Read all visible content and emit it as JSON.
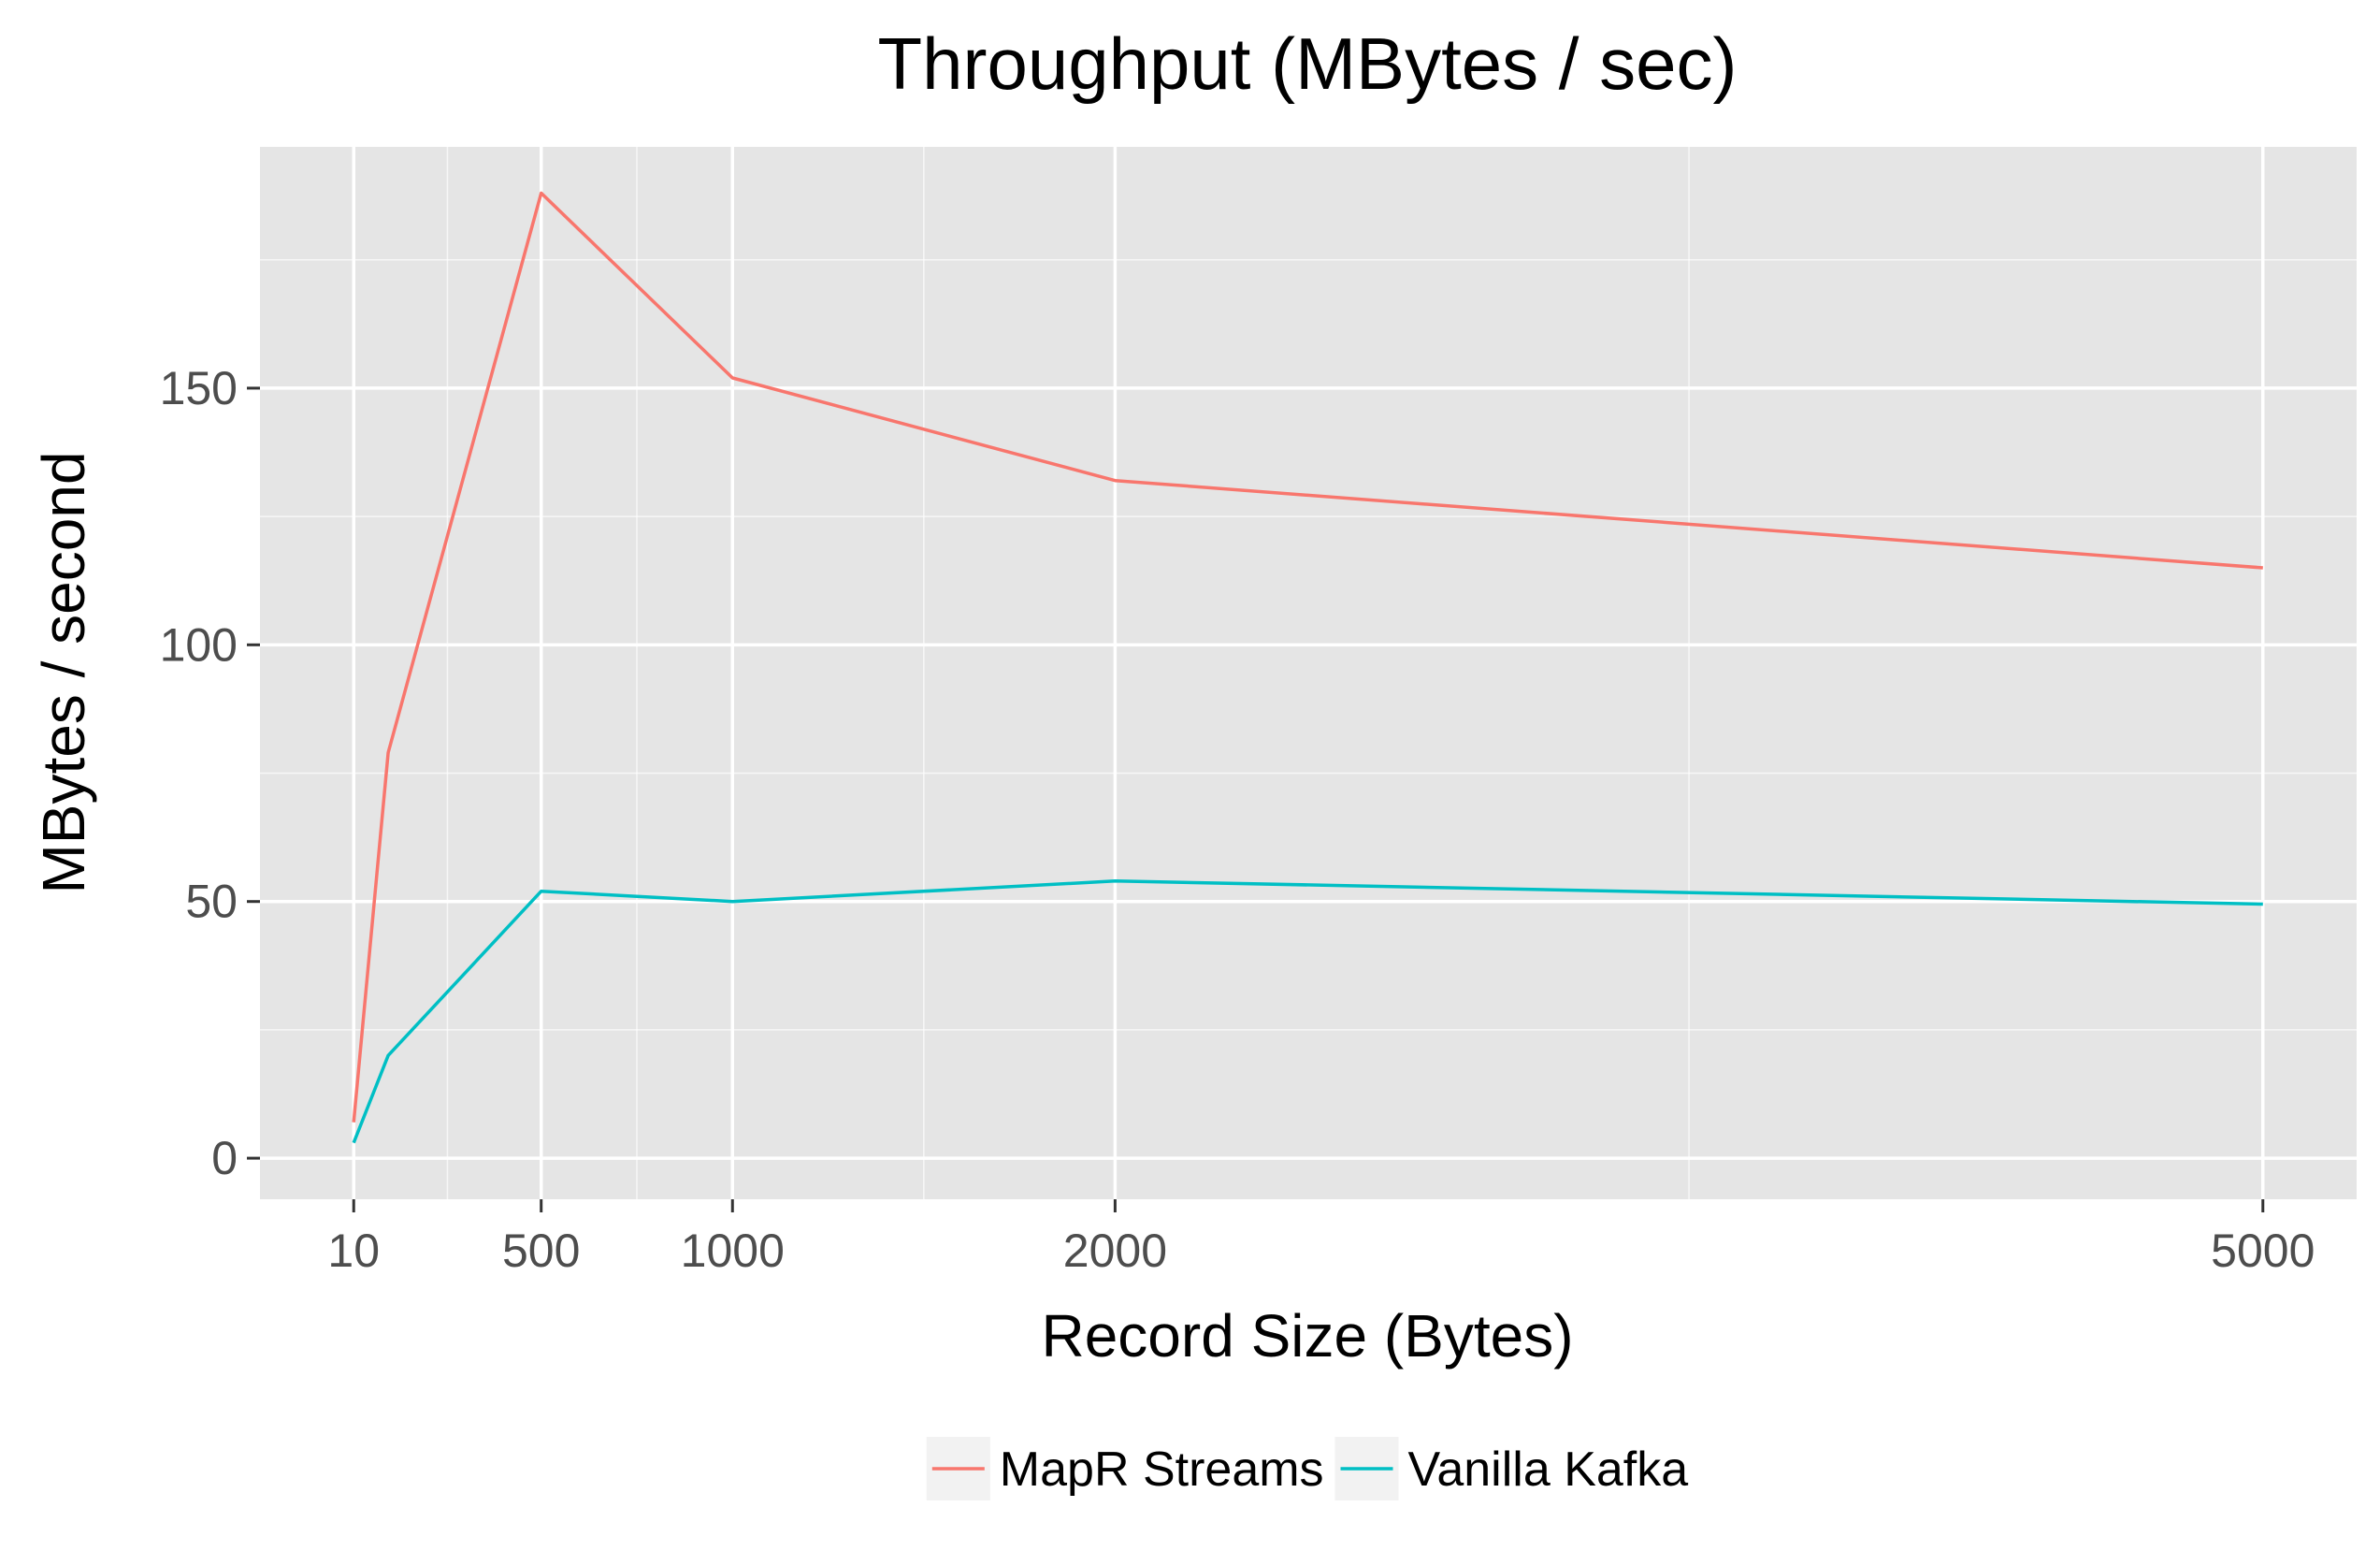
{
  "chart_data": {
    "type": "line",
    "title": "Throughput (MBytes / sec)",
    "xlabel": "Record Size (Bytes)",
    "ylabel": "MBytes / second",
    "xlim": [
      -235,
      5245
    ],
    "ylim": [
      -8,
      197
    ],
    "x_ticks": [
      10,
      500,
      1000,
      2000,
      5000
    ],
    "y_ticks": [
      0,
      50,
      100,
      150
    ],
    "x_minor_gridlines": [
      255,
      750,
      1500,
      3500
    ],
    "y_minor_gridlines": [
      25,
      75,
      125,
      175
    ],
    "grid": true,
    "legend_position": "bottom",
    "colors": {
      "panel_background": "#e5e5e5",
      "gridline": "#ffffff",
      "tick_label": "#4d4d4d",
      "legend_key_background": "#f2f2f2"
    },
    "series": [
      {
        "name": "MapR Streams",
        "color": "#f8766d",
        "x": [
          10,
          100,
          500,
          1000,
          2000,
          5000
        ],
        "y": [
          7,
          79,
          188,
          152,
          132,
          115
        ]
      },
      {
        "name": "Vanilla Kafka",
        "color": "#00bfc4",
        "x": [
          10,
          100,
          500,
          1000,
          2000,
          5000
        ],
        "y": [
          3,
          20,
          52,
          50,
          54,
          49.5
        ]
      }
    ]
  }
}
